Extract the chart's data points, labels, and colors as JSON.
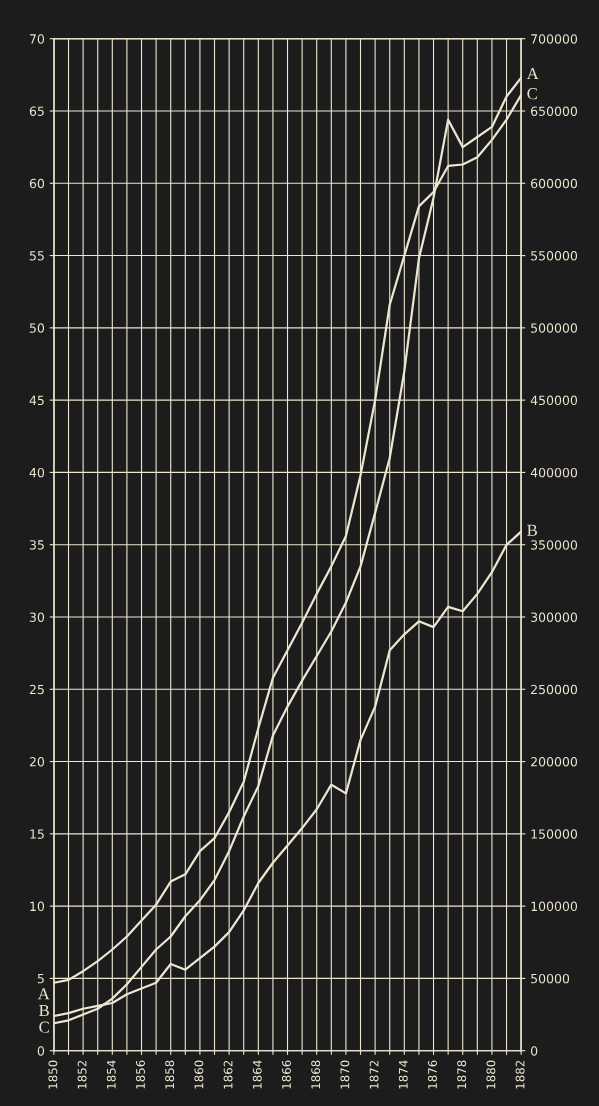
{
  "chart_data": {
    "type": "line",
    "x": [
      1850,
      1851,
      1852,
      1853,
      1854,
      1855,
      1856,
      1857,
      1858,
      1859,
      1860,
      1861,
      1862,
      1863,
      1864,
      1865,
      1866,
      1867,
      1868,
      1869,
      1870,
      1871,
      1872,
      1873,
      1874,
      1875,
      1876,
      1877,
      1878,
      1879,
      1880,
      1881,
      1882
    ],
    "series": [
      {
        "color": "#ece6d0",
        "values": [
          4.7,
          4.9,
          5.5,
          6.2,
          7.0,
          7.9,
          9.0,
          10.1,
          11.7,
          12.2,
          13.8,
          14.7,
          16.5,
          18.6,
          22.3,
          25.8,
          27.7,
          29.6,
          31.6,
          33.5,
          35.6,
          39.8,
          45.0,
          51.6,
          55.0,
          58.4,
          59.4,
          61.2,
          61.3,
          61.8,
          63.0,
          64.4,
          66.1
        ]
      },
      {
        "color": "#ece6d0",
        "values": [
          1.9,
          2.1,
          2.5,
          2.9,
          3.6,
          4.6,
          5.8,
          7.0,
          7.9,
          9.3,
          10.4,
          11.8,
          13.8,
          16.2,
          18.3,
          21.8,
          23.8,
          25.6,
          27.3,
          29.0,
          31.0,
          33.5,
          37.2,
          41.0,
          47.0,
          54.8,
          59.0,
          64.4,
          62.5,
          63.2,
          63.9,
          66.0,
          67.3
        ]
      },
      {
        "color": "#ece6d0",
        "values": [
          2.4,
          2.6,
          2.9,
          3.1,
          3.3,
          3.9,
          4.3,
          4.7,
          6.0,
          5.6,
          6.4,
          7.2,
          8.2,
          9.7,
          11.6,
          13.0,
          14.2,
          15.4,
          16.7,
          18.4,
          17.8,
          21.5,
          23.8,
          27.7,
          28.8,
          29.7,
          29.3,
          30.7,
          30.4,
          31.6,
          33.1,
          35.0,
          35.9
        ]
      }
    ],
    "xlim": [
      1850,
      1882
    ],
    "xticks": [
      1850,
      {
        "value": 1851,
        "label": null
      },
      1852,
      {
        "value": 1853,
        "label": null
      },
      1854,
      {
        "value": 1855,
        "label": null
      },
      1856,
      {
        "value": 1857,
        "label": null
      },
      1858,
      {
        "value": 1859,
        "label": null
      },
      1860,
      {
        "value": 1861,
        "label": null
      },
      1862,
      {
        "value": 1863,
        "label": null
      },
      1864,
      {
        "value": 1865,
        "label": null
      },
      1866,
      {
        "value": 1867,
        "label": null
      },
      1868,
      {
        "value": 1869,
        "label": null
      },
      1870,
      {
        "value": 1871,
        "label": null
      },
      1872,
      {
        "value": 1873,
        "label": null
      },
      1874,
      {
        "value": 1875,
        "label": null
      },
      1876,
      {
        "value": 1877,
        "label": null
      },
      1878,
      {
        "value": 1879,
        "label": null
      },
      1880,
      {
        "value": 1881,
        "label": null
      },
      1882
    ],
    "ylim": [
      0,
      70
    ],
    "yticks": [
      0,
      5,
      10,
      15,
      20,
      25,
      30,
      35,
      40,
      45,
      50,
      55,
      60,
      65,
      70
    ],
    "y2lim": [
      0,
      700000
    ],
    "y2ticks": [
      0,
      50000,
      100000,
      150000,
      200000,
      250000,
      300000,
      350000,
      400000,
      450000,
      500000,
      550000,
      600000,
      650000,
      700000
    ],
    "grid": true,
    "marker": "none",
    "line_style": "solid",
    "annotations": [
      "A",
      "B",
      "C",
      "A",
      "C",
      "B"
    ]
  }
}
